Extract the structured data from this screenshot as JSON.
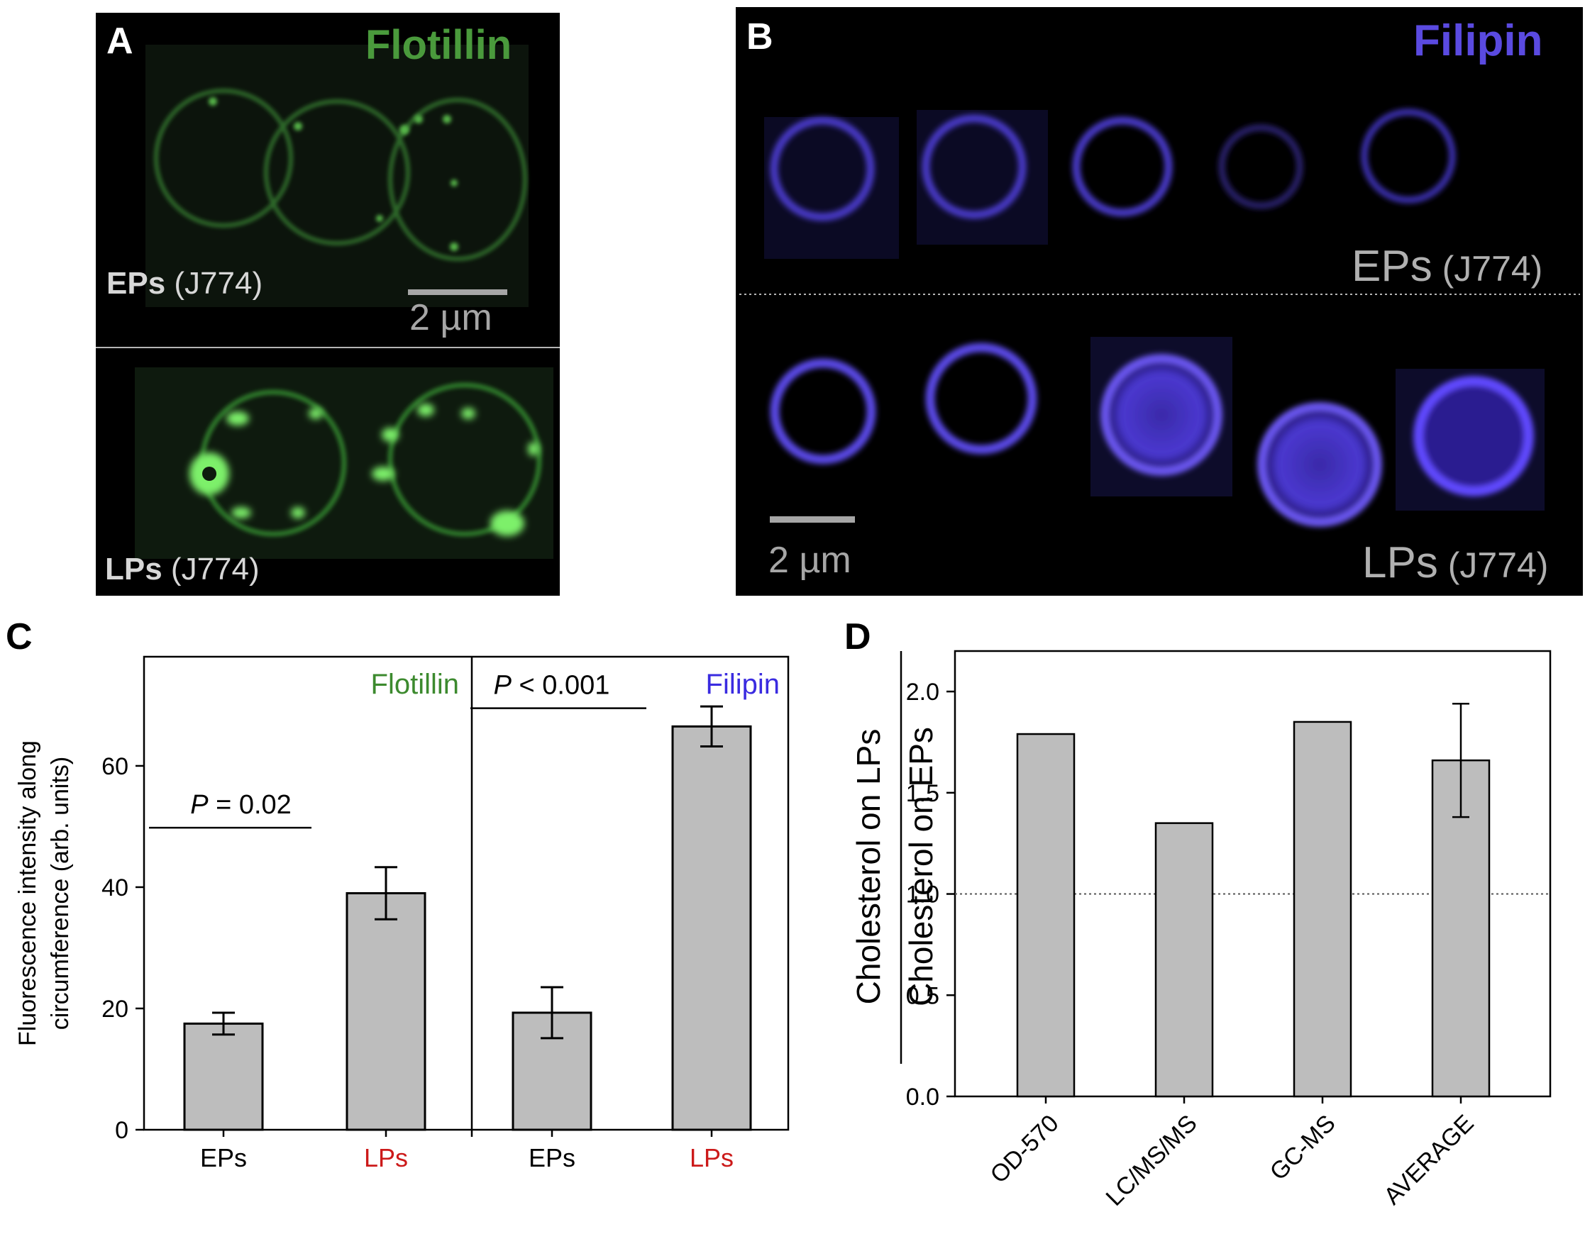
{
  "panel_a": {
    "letter": "A",
    "stain": "Flotillin",
    "stain_color": "#4a9a3c",
    "top_label_bold": "EPs",
    "top_label_cell": " (J774)",
    "scale_text": "2 µm",
    "bottom_label_bold": "LPs",
    "bottom_label_cell": " (J774)"
  },
  "panel_b": {
    "letter": "B",
    "stain": "Filipin",
    "stain_color": "#5a4ae0",
    "top_label": "EPs",
    "top_label_cell": " (J774)",
    "bottom_label": "LPs",
    "bottom_label_cell": " (J774)",
    "scale_text": "2 µm"
  },
  "chart_data": [
    {
      "panel": "C",
      "type": "bar",
      "ylabel_line1": "Fluorescence intensity along",
      "ylabel_line2": "circumference (arb. units)",
      "ylim": [
        0,
        78
      ],
      "yticks": [
        0,
        20,
        40,
        60
      ],
      "groups": [
        {
          "name": "Flotillin",
          "color": "#3c8a2e"
        },
        {
          "name": "Filipin",
          "color": "#3a2be0"
        }
      ],
      "categories": [
        "EPs",
        "LPs",
        "EPs",
        "LPs"
      ],
      "category_colors": [
        "#000000",
        "#cc1a1a",
        "#000000",
        "#cc1a1a"
      ],
      "values": [
        17.5,
        39,
        19.3,
        66.5
      ],
      "errors": [
        1.8,
        4.3,
        4.2,
        3.3
      ],
      "annotations": [
        {
          "prefix": "P",
          "text": " = 0.02"
        },
        {
          "prefix": "P",
          "text": " < 0.001"
        }
      ],
      "bar_color": "#bdbdbd"
    },
    {
      "panel": "D",
      "type": "bar",
      "ylabel_numerator": "Cholesterol   on   LPs",
      "ylabel_denominator": "Cholesterol   on   EPs",
      "ylim": [
        0,
        2.2
      ],
      "yticks": [
        "0.0",
        "0.5",
        "1.0",
        "1.5",
        "2.0"
      ],
      "reference_line": 1.0,
      "categories": [
        "OD-570",
        "LC/MS/MS",
        "GC-MS",
        "AVERAGE"
      ],
      "values": [
        1.79,
        1.35,
        1.85,
        1.66
      ],
      "errors": [
        0,
        0,
        0,
        0.28
      ],
      "bar_color": "#bdbdbd"
    }
  ]
}
